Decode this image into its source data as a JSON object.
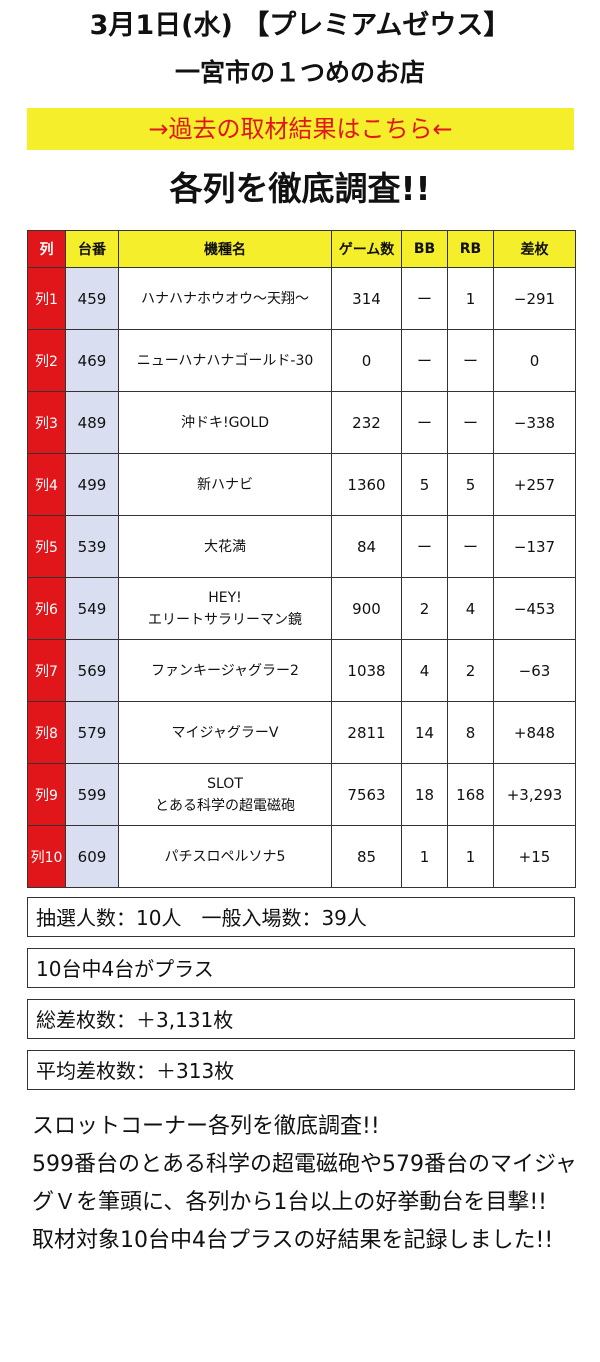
{
  "header": {
    "line1": "3月1日(水) 【プレミアムゼウス】",
    "line2": "一宮市の１つめのお店"
  },
  "link_bar": {
    "label": "→過去の取材結果はこちら←"
  },
  "section_title": "各列を徹底調査!!",
  "colors": {
    "accent_yellow": "#f5ee2a",
    "accent_red": "#e0161b",
    "daiban_blue": "#d9dff0"
  },
  "table": {
    "headers": [
      "列",
      "台番",
      "機種名",
      "ゲーム数",
      "BB",
      "RB",
      "差枚"
    ],
    "rows": [
      {
        "retsu": "列1",
        "daiban": "459",
        "machine": [
          "ハナハナホウオウ〜天翔〜"
        ],
        "games": "314",
        "bb": "ー",
        "rb": "1",
        "diff": "−291"
      },
      {
        "retsu": "列2",
        "daiban": "469",
        "machine": [
          "ニューハナハナゴールド-30"
        ],
        "games": "0",
        "bb": "ー",
        "rb": "ー",
        "diff": "0"
      },
      {
        "retsu": "列3",
        "daiban": "489",
        "machine": [
          "沖ドキ!GOLD"
        ],
        "games": "232",
        "bb": "ー",
        "rb": "ー",
        "diff": "−338"
      },
      {
        "retsu": "列4",
        "daiban": "499",
        "machine": [
          "新ハナビ"
        ],
        "games": "1360",
        "bb": "5",
        "rb": "5",
        "diff": "+257"
      },
      {
        "retsu": "列5",
        "daiban": "539",
        "machine": [
          "大花満"
        ],
        "games": "84",
        "bb": "ー",
        "rb": "ー",
        "diff": "−137"
      },
      {
        "retsu": "列6",
        "daiban": "549",
        "machine": [
          "HEY!",
          "エリートサラリーマン鏡"
        ],
        "games": "900",
        "bb": "2",
        "rb": "4",
        "diff": "−453"
      },
      {
        "retsu": "列7",
        "daiban": "569",
        "machine": [
          "ファンキージャグラー2"
        ],
        "games": "1038",
        "bb": "4",
        "rb": "2",
        "diff": "−63"
      },
      {
        "retsu": "列8",
        "daiban": "579",
        "machine": [
          "マイジャグラーV"
        ],
        "games": "2811",
        "bb": "14",
        "rb": "8",
        "diff": "+848"
      },
      {
        "retsu": "列9",
        "daiban": "599",
        "machine": [
          "SLOT",
          "とある科学の超電磁砲"
        ],
        "games": "7563",
        "bb": "18",
        "rb": "168",
        "diff": "+3,293"
      },
      {
        "retsu": "列10",
        "daiban": "609",
        "machine": [
          "パチスロペルソナ5"
        ],
        "games": "85",
        "bb": "1",
        "rb": "1",
        "diff": "+15"
      }
    ]
  },
  "summary": {
    "lottery": "抽選人数：10人　一般入場数：39人",
    "plus_count": "10台中4台がプラス",
    "total_diff": "総差枚数：＋3,131枚",
    "avg_diff": "平均差枚数：＋313枚"
  },
  "description": [
    "スロットコーナー各列を徹底調査!!",
    "599番台のとある科学の超電磁砲や579番台のマイジャグＶを筆頭に、各列から1台以上の好挙動台を目撃!!",
    "取材対象10台中4台プラスの好結果を記録しました!!"
  ]
}
